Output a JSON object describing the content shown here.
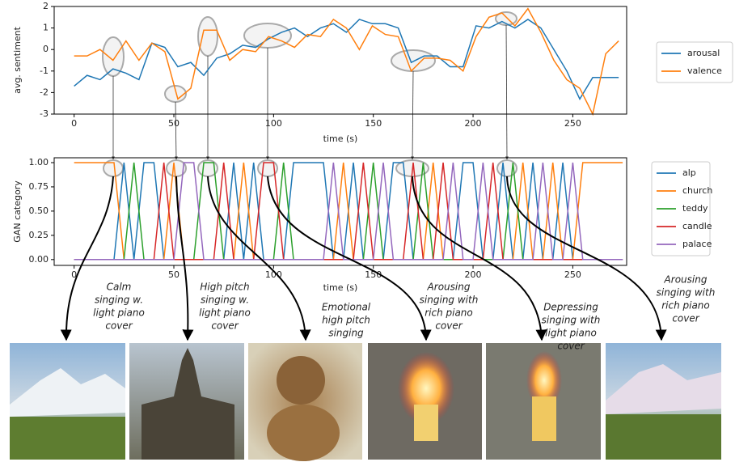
{
  "chart_data": [
    {
      "type": "line",
      "xlabel": "time (s)",
      "ylabel": "avg. sentiment",
      "x": [
        0,
        6.5,
        13,
        19.5,
        26,
        32.5,
        39,
        45.5,
        52,
        58.5,
        65,
        71.5,
        78,
        84.5,
        91,
        97.5,
        104,
        110.5,
        117,
        123.5,
        130,
        136.5,
        143,
        149.5,
        156,
        162.5,
        169,
        175.5,
        182,
        188.5,
        195,
        201.5,
        208,
        214.5,
        221,
        227.5,
        234,
        240.5,
        247,
        253.5,
        260,
        266.5,
        273
      ],
      "series": [
        {
          "name": "arousal",
          "color": "#1f77b4",
          "values": [
            -1.7,
            -1.2,
            -1.4,
            -0.9,
            -1.1,
            -1.4,
            0.3,
            0.1,
            -0.8,
            -0.6,
            -1.2,
            -0.4,
            -0.2,
            0.2,
            0.1,
            0.5,
            0.8,
            1.0,
            0.6,
            1.0,
            1.2,
            0.8,
            1.4,
            1.2,
            1.2,
            1.0,
            -0.6,
            -0.3,
            -0.3,
            -0.8,
            -0.8,
            1.1,
            1.0,
            1.3,
            1.0,
            1.4,
            1.0,
            0.0,
            -1.0,
            -2.3,
            -1.3,
            -1.3,
            -1.3
          ]
        },
        {
          "name": "valence",
          "color": "#ff7f0e",
          "values": [
            -0.3,
            -0.3,
            0.0,
            -0.5,
            0.4,
            -0.5,
            0.3,
            -0.1,
            -2.3,
            -1.8,
            0.9,
            0.9,
            -0.5,
            0.0,
            -0.1,
            0.6,
            0.4,
            0.1,
            0.7,
            0.6,
            1.4,
            1.0,
            0.0,
            1.1,
            0.7,
            0.6,
            -1.0,
            -0.4,
            -0.4,
            -0.5,
            -1.0,
            0.6,
            1.5,
            1.7,
            1.1,
            1.9,
            0.8,
            -0.5,
            -1.4,
            -1.8,
            -3.0,
            -0.2,
            0.4
          ]
        }
      ],
      "xlim": [
        -10,
        277
      ],
      "xticks": [
        0,
        50,
        100,
        150,
        200,
        250
      ],
      "ylim": [
        -3,
        2
      ],
      "yticks": [
        -3,
        -2,
        -1,
        0,
        1,
        2
      ],
      "legend": "right"
    },
    {
      "type": "line",
      "xlabel": "time (s)",
      "ylabel": "GAN category",
      "x": [
        0,
        5,
        10,
        15,
        20,
        25,
        30,
        35,
        40,
        45,
        50,
        55,
        60,
        65,
        70,
        75,
        80,
        85,
        90,
        95,
        100,
        105,
        110,
        115,
        120,
        125,
        130,
        135,
        140,
        145,
        150,
        155,
        160,
        165,
        170,
        175,
        180,
        185,
        190,
        195,
        200,
        205,
        210,
        215,
        220,
        225,
        230,
        235,
        240,
        245,
        250,
        255,
        260,
        265,
        270,
        275
      ],
      "series": [
        {
          "name": "alp",
          "color": "#1f77b4",
          "values": [
            0,
            0,
            0,
            0,
            0,
            1,
            0,
            1,
            1,
            0,
            0,
            0,
            0,
            0,
            0,
            0,
            1,
            0,
            1,
            0,
            0,
            0,
            1,
            1,
            1,
            1,
            0,
            0,
            1,
            0,
            0,
            0,
            1,
            1,
            0,
            0,
            0,
            0,
            0,
            1,
            1,
            0,
            0,
            1,
            0,
            0,
            1,
            0,
            0,
            1,
            0,
            0,
            0,
            0,
            0,
            0
          ]
        },
        {
          "name": "church",
          "color": "#ff7f0e",
          "values": [
            1,
            1,
            1,
            1,
            1,
            0,
            0,
            0,
            0,
            0,
            1,
            0,
            0,
            0,
            0,
            0,
            0,
            1,
            0,
            0,
            0,
            0,
            0,
            0,
            0,
            0,
            0,
            1,
            0,
            0,
            0,
            0,
            0,
            0,
            0,
            0,
            1,
            0,
            0,
            0,
            0,
            0,
            0,
            0,
            0,
            1,
            0,
            0,
            1,
            0,
            0,
            1,
            1,
            1,
            1,
            1
          ]
        },
        {
          "name": "teddy",
          "color": "#2ca02c",
          "values": [
            0,
            0,
            0,
            0,
            0,
            0,
            1,
            0,
            0,
            0,
            0,
            0,
            0,
            1,
            1,
            0,
            0,
            0,
            0,
            0,
            0,
            1,
            0,
            0,
            0,
            0,
            0,
            0,
            0,
            0,
            1,
            0,
            0,
            0,
            0,
            1,
            0,
            0,
            0,
            0,
            0,
            0,
            0,
            0,
            1,
            0,
            0,
            0,
            0,
            0,
            0,
            0,
            0,
            0,
            0,
            0
          ]
        },
        {
          "name": "candle",
          "color": "#d62728",
          "values": [
            0,
            0,
            0,
            0,
            0,
            0,
            0,
            0,
            0,
            1,
            0,
            0,
            0,
            0,
            0,
            1,
            0,
            0,
            0,
            1,
            1,
            0,
            0,
            0,
            0,
            0,
            0,
            0,
            0,
            1,
            0,
            0,
            0,
            0,
            1,
            0,
            0,
            1,
            0,
            0,
            0,
            0,
            1,
            0,
            0,
            0,
            0,
            0,
            0,
            0,
            0,
            0,
            0,
            0,
            0,
            0
          ]
        },
        {
          "name": "palace",
          "color": "#9467bd",
          "values": [
            0,
            0,
            0,
            0,
            0,
            0,
            0,
            0,
            0,
            0,
            0,
            1,
            1,
            0,
            0,
            0,
            0,
            0,
            0,
            0,
            0,
            0,
            0,
            0,
            0,
            0,
            1,
            0,
            0,
            0,
            0,
            1,
            0,
            0,
            0,
            0,
            0,
            0,
            1,
            0,
            0,
            1,
            0,
            0,
            0,
            0,
            0,
            1,
            0,
            0,
            1,
            0,
            0,
            0,
            0,
            0
          ]
        }
      ],
      "xlim": [
        -10,
        277
      ],
      "xticks": [
        0,
        50,
        100,
        150,
        200,
        250
      ],
      "ylim": [
        -0.06,
        1.05
      ],
      "yticks": [
        {
          "value": 0,
          "label": "0.00"
        },
        {
          "value": 0.25,
          "label": "0.25"
        },
        {
          "value": 0.5,
          "label": "0.50"
        },
        {
          "value": 0.75,
          "label": "0.75"
        },
        {
          "value": 1,
          "label": "1.00"
        }
      ],
      "legend": "right",
      "annotations": [
        [
          "Calm",
          "singing w.",
          "light piano",
          "cover"
        ],
        [
          "High pitch",
          "singing w.",
          "light piano",
          "cover"
        ],
        [
          "Emotional",
          "high pitch",
          "singing"
        ],
        [
          "Arousing",
          "singing with",
          "rich piano",
          "cover"
        ],
        [
          "Depressing",
          "singing with",
          "light piano",
          "cover"
        ],
        [
          "Arousing",
          "singing with",
          "rich piano",
          "cover"
        ]
      ]
    }
  ]
}
